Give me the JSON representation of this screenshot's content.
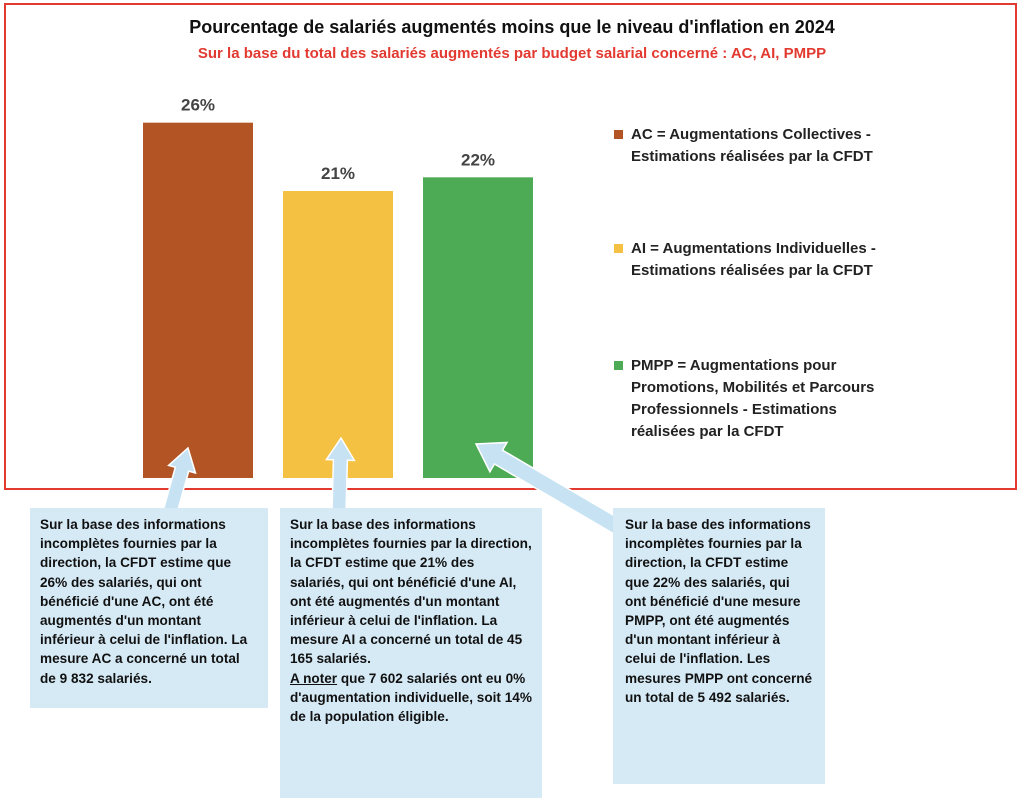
{
  "chart_data": {
    "type": "bar",
    "title": "Pourcentage de salariés augmentés moins que le niveau d'inflation en 2024",
    "subtitle": "Sur la base du total des salariés augmentés par budget salarial concerné : AC, AI, PMPP",
    "categories": [
      "AC",
      "AI",
      "PMPP"
    ],
    "values": [
      26,
      21,
      22
    ],
    "value_labels": [
      "26%",
      "21%",
      "22%"
    ],
    "colors": [
      "#b35425",
      "#f4c143",
      "#4daa55"
    ],
    "ylim": [
      0,
      30
    ],
    "grid": false,
    "legend_position": "right",
    "legend": [
      {
        "line1": "AC = Augmentations Collectives -",
        "line2": "Estimations réalisées par la CFDT",
        "color": "#b35425"
      },
      {
        "line1": "AI = Augmentations Individuelles -",
        "line2": "Estimations réalisées par la CFDT",
        "color": "#f4c143"
      },
      {
        "line1": "PMPP = Augmentations pour",
        "line2": "Promotions, Mobilités et Parcours",
        "line3": "Professionnels - Estimations",
        "line4": "réalisées par la CFDT",
        "color": "#4daa55"
      }
    ]
  },
  "callouts": [
    {
      "text": "Sur la base des informations incomplètes fournies par la direction, la CFDT estime que 26% des salariés, qui ont bénéficié d'une AC, ont été augmentés d'un montant inférieur à celui de l'inflation. La mesure AC a concerné un total de 9 832 salariés."
    },
    {
      "text": "Sur la base des informations incomplètes fournies par la direction, la CFDT estime que 21% des salariés, qui ont bénéficié d'une AI, ont été augmentés d'un montant inférieur à celui de l'inflation. La mesure AI a concerné un total de 45 165 salariés.",
      "note_label": "A noter",
      "note_text": " que 7 602 salariés ont eu 0% d'augmentation individuelle, soit 14% de la population éligible."
    },
    {
      "text": "Sur la base des informations incomplètes fournies par la direction, la CFDT estime que 22% des salariés, qui ont bénéficié d'une mesure PMPP, ont été augmentés d'un montant inférieur à celui de l'inflation. Les mesures PMPP ont concerné un total de 5 492 salariés."
    }
  ],
  "colors": {
    "frame": "#e23a31",
    "callout_bg": "#d6eaf6",
    "arrow": "#c7e3f3"
  }
}
